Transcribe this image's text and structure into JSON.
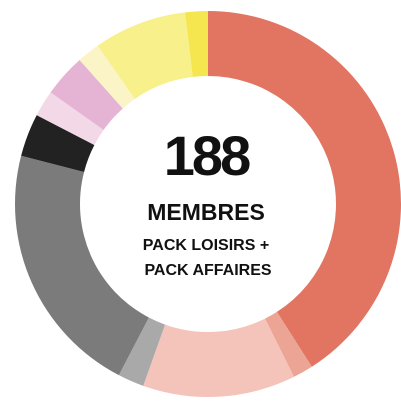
{
  "chart_data": {
    "type": "pie",
    "donut": true,
    "title": "188",
    "subtitle": "MEMBRES",
    "annotations": [
      "PACK LOISIRS +",
      "PACK AFFAIRES"
    ],
    "values": [
      41,
      1.7,
      12.8,
      2.2,
      21.4,
      3.6,
      2.2,
      3.6,
      1.9,
      7.8,
      1.9
    ],
    "colors": [
      "#e27562",
      "#eca595",
      "#f4c4bb",
      "#a9a9a9",
      "#7b7b7b",
      "#222222",
      "#f3d9e8",
      "#e5b4d5",
      "#fbf4c6",
      "#f8f08a",
      "#f5e64f"
    ]
  }
}
